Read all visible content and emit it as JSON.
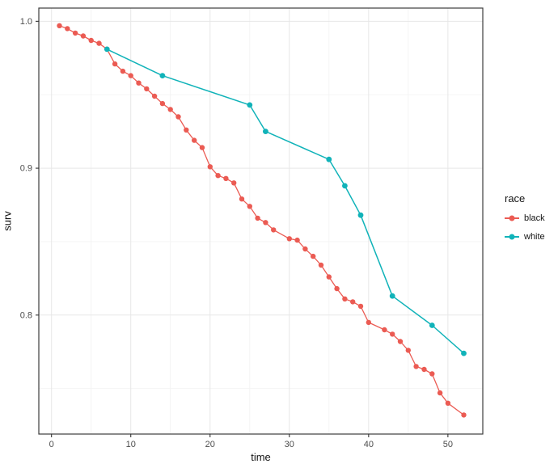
{
  "chart_data": {
    "type": "line",
    "title": "",
    "xlabel": "time",
    "ylabel": "surv",
    "xlim": [
      -1.6,
      54.4
    ],
    "ylim": [
      0.719,
      1.009
    ],
    "grid": "major+minor",
    "x_axis": {
      "major_ticks": [
        0,
        10,
        20,
        30,
        40,
        50
      ],
      "tick_labels": [
        "0",
        "10",
        "20",
        "30",
        "40",
        "50"
      ],
      "minor_ticks": [
        5,
        15,
        25,
        35,
        45
      ]
    },
    "y_axis": {
      "major_ticks": [
        1.0,
        0.9,
        0.8
      ],
      "tick_labels": [
        "1.0",
        "0.9",
        "0.8"
      ],
      "minor_ticks": [
        0.95,
        0.85,
        0.75
      ]
    },
    "legend": {
      "title": "race",
      "position": "right"
    },
    "style": {
      "panel_border": "#3c3c3c",
      "grid_major": "#e7e7e7",
      "grid_minor": "#f3f3f3",
      "tick_color": "#333333",
      "tick_label_color": "#4d4d4d",
      "background": "#ffffff"
    },
    "series": [
      {
        "name": "black",
        "color": "#EB5B53",
        "marker": "circle",
        "x": [
          1,
          2,
          3,
          4,
          5,
          6,
          7,
          8,
          9,
          10,
          11,
          12,
          13,
          14,
          15,
          16,
          17,
          18,
          19,
          20,
          21,
          22,
          23,
          24,
          25,
          26,
          27,
          28,
          30,
          31,
          32,
          33,
          34,
          35,
          36,
          37,
          38,
          39,
          40,
          42,
          43,
          44,
          45,
          46,
          47,
          48,
          49,
          50,
          52
        ],
        "y": [
          0.997,
          0.995,
          0.992,
          0.99,
          0.987,
          0.985,
          0.981,
          0.971,
          0.966,
          0.963,
          0.958,
          0.954,
          0.949,
          0.944,
          0.94,
          0.935,
          0.926,
          0.919,
          0.914,
          0.901,
          0.895,
          0.893,
          0.89,
          0.879,
          0.874,
          0.866,
          0.863,
          0.858,
          0.852,
          0.851,
          0.845,
          0.84,
          0.834,
          0.826,
          0.818,
          0.811,
          0.809,
          0.806,
          0.795,
          0.79,
          0.787,
          0.782,
          0.776,
          0.765,
          0.763,
          0.76,
          0.747,
          0.74,
          0.732
        ]
      },
      {
        "name": "white",
        "color": "#11B3B9",
        "marker": "circle",
        "x": [
          7,
          14,
          25,
          27,
          35,
          37,
          39,
          43,
          48,
          52
        ],
        "y": [
          0.981,
          0.963,
          0.943,
          0.925,
          0.906,
          0.888,
          0.868,
          0.813,
          0.793,
          0.774
        ]
      }
    ]
  }
}
